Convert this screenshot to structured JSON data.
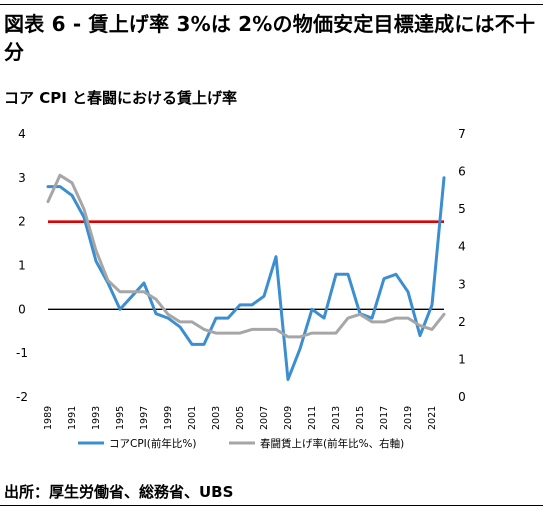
{
  "header": {
    "title": "図表 6 - 賃上げ率 3%は 2%の物価安定目標達成には不十分",
    "subtitle": "コア CPI と春闘における賃上げ率"
  },
  "footer": {
    "source": "出所：厚生労働省、総務省、UBS"
  },
  "colors": {
    "series_cpi": "#3b8fd0",
    "series_wage": "#a6a6a6",
    "target_line": "#e00000",
    "zero_line": "#000000"
  },
  "chart_data": {
    "type": "line",
    "title": "",
    "xlabel": "",
    "ylabel_left": "",
    "ylabel_right": "",
    "x": [
      1989,
      1990,
      1991,
      1992,
      1993,
      1994,
      1995,
      1996,
      1997,
      1998,
      1999,
      2000,
      2001,
      2002,
      2003,
      2004,
      2005,
      2006,
      2007,
      2008,
      2009,
      2010,
      2011,
      2012,
      2013,
      2014,
      2015,
      2016,
      2017,
      2018,
      2019,
      2020,
      2021,
      2022
    ],
    "x_tick_labels": [
      "1989",
      "1991",
      "1993",
      "1995",
      "1997",
      "1999",
      "2001",
      "2003",
      "2005",
      "2007",
      "2009",
      "2011",
      "2013",
      "2015",
      "2017",
      "2019",
      "2021"
    ],
    "ylim_left": [
      -2,
      4
    ],
    "y_ticks_left": [
      "-2",
      "-1",
      "0",
      "1",
      "2",
      "3",
      "4"
    ],
    "ylim_right": [
      0,
      7
    ],
    "y_ticks_right": [
      "0",
      "1",
      "2",
      "3",
      "4",
      "5",
      "6",
      "7"
    ],
    "series": [
      {
        "name": "コアCPI(前年比%)",
        "axis": "left",
        "values": [
          2.8,
          2.8,
          2.6,
          2.1,
          1.1,
          0.6,
          0.0,
          0.3,
          0.6,
          -0.1,
          -0.2,
          -0.4,
          -0.8,
          -0.8,
          -0.2,
          -0.2,
          0.1,
          0.1,
          0.3,
          1.2,
          -1.6,
          -0.9,
          -0.0,
          -0.2,
          0.8,
          0.8,
          -0.1,
          -0.2,
          0.7,
          0.8,
          0.4,
          -0.6,
          0.1,
          3.0
        ]
      },
      {
        "name": "春闘賃上げ率(前年比%、右軸)",
        "axis": "right",
        "values": [
          5.2,
          5.9,
          5.7,
          5.0,
          3.9,
          3.1,
          2.8,
          2.8,
          2.8,
          2.6,
          2.2,
          2.0,
          2.0,
          1.8,
          1.7,
          1.7,
          1.7,
          1.8,
          1.8,
          1.8,
          1.6,
          1.6,
          1.7,
          1.7,
          1.7,
          2.1,
          2.2,
          2.0,
          2.0,
          2.1,
          2.1,
          1.9,
          1.8,
          2.2
        ]
      }
    ],
    "reference_lines": [
      {
        "axis": "left",
        "y": 2,
        "color": "#e00000"
      },
      {
        "axis": "left",
        "y": 0,
        "color": "#000000"
      }
    ],
    "grid": false,
    "legend_position": "bottom"
  }
}
